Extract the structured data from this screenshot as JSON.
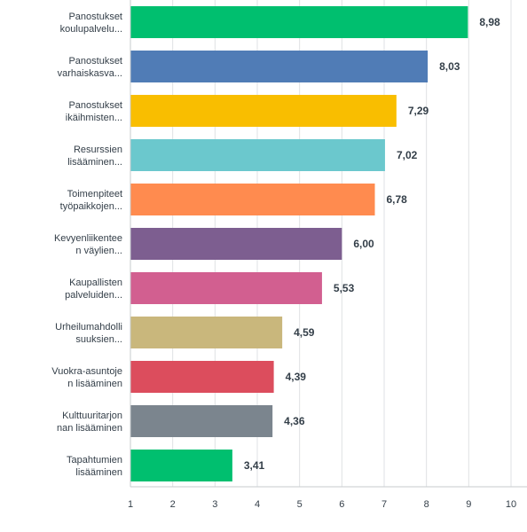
{
  "chart_data": {
    "type": "bar",
    "orientation": "horizontal",
    "categories": [
      [
        "Panostukset",
        "koulupalvelu..."
      ],
      [
        "Panostukset",
        "varhaiskasva..."
      ],
      [
        "Panostukset",
        "ikäihmisten..."
      ],
      [
        "Resurssien",
        "lisääminen..."
      ],
      [
        "Toimenpiteet",
        "työpaikkojen..."
      ],
      [
        "Kevyenliikentee",
        "n väylien..."
      ],
      [
        "Kaupallisten",
        "palveluiden..."
      ],
      [
        "Urheilumahdolli",
        "suuksien..."
      ],
      [
        "Vuokra-asuntoje",
        "n lisääminen"
      ],
      [
        "Kulttuuritarjon",
        "nan lisääminen"
      ],
      [
        "Tapahtumien",
        "lisääminen"
      ]
    ],
    "values": [
      8.98,
      8.03,
      7.29,
      7.02,
      6.78,
      6.0,
      5.53,
      4.59,
      4.39,
      4.36,
      3.41
    ],
    "value_labels": [
      "8,98",
      "8,03",
      "7,29",
      "7,02",
      "6,78",
      "6,00",
      "5,53",
      "4,59",
      "4,39",
      "4,36",
      "3,41"
    ],
    "colors": [
      "#00bf6f",
      "#507cb6",
      "#f9be00",
      "#6bc8cd",
      "#ff8b4f",
      "#7d5e90",
      "#d25f90",
      "#c9b77c",
      "#dc4d5d",
      "#7b858e",
      "#00bf6f"
    ],
    "xlim": [
      1,
      10
    ],
    "ticks": [
      1,
      2,
      3,
      4,
      5,
      6,
      7,
      8,
      9,
      10
    ],
    "tick_labels": [
      "1",
      "2",
      "3",
      "4",
      "5",
      "6",
      "7",
      "8",
      "9",
      "10"
    ],
    "grid": true,
    "grid_color": "#dfe2e4",
    "axis_color": "#c7cbce"
  }
}
